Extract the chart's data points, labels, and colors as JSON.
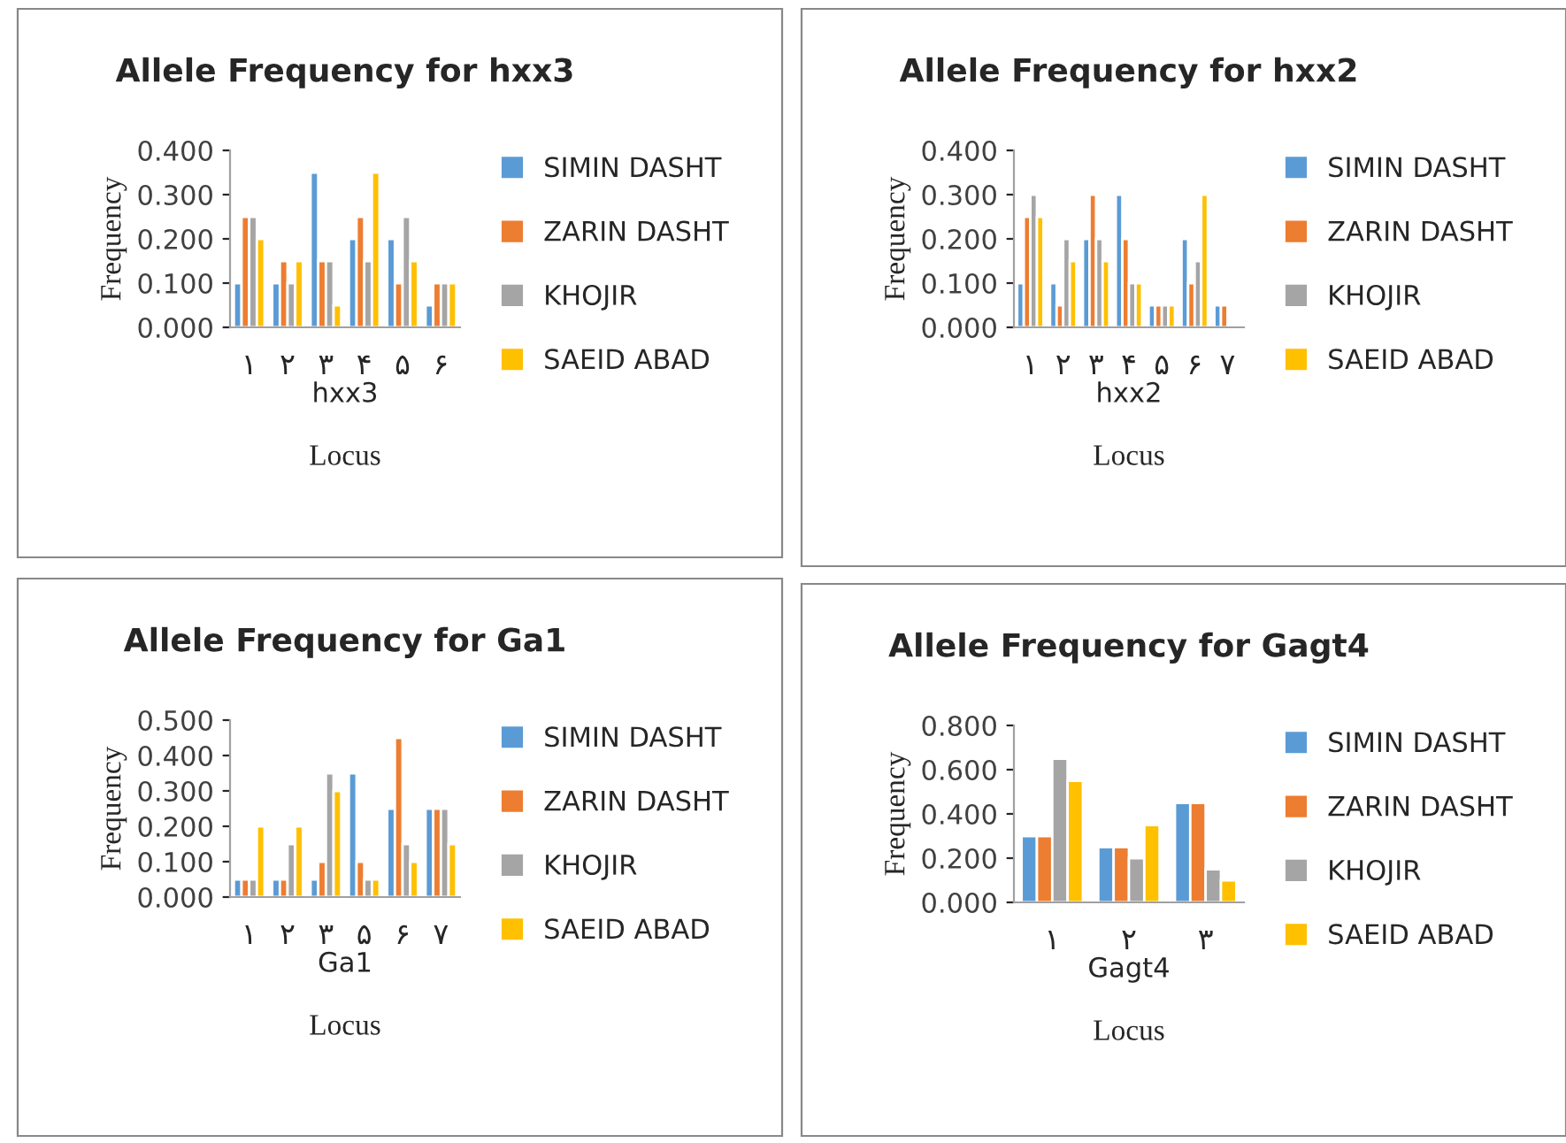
{
  "chart_data": [
    {
      "type": "bar",
      "title": "Allele Frequency for hxx3",
      "xlabel": "Locus",
      "ylabel": "Frequency",
      "annotations": [
        "hxx3"
      ],
      "categories": [
        "۱",
        "۲",
        "۳",
        "۴",
        "۵",
        "۶"
      ],
      "ylim": [
        0,
        0.4
      ],
      "yticks": [
        {
          "value": 0,
          "label": "0.000"
        },
        {
          "value": 0.1,
          "label": "0.100"
        },
        {
          "value": 0.2,
          "label": "0.200"
        },
        {
          "value": 0.3,
          "label": "0.300"
        },
        {
          "value": 0.4,
          "label": "0.400"
        }
      ],
      "grid": false,
      "legend": "right",
      "series": [
        {
          "name": "SIMIN DASHT",
          "color": "#5b9bd5",
          "values": [
            0.1,
            0.1,
            0.35,
            0.2,
            0.2,
            0.05
          ]
        },
        {
          "name": "ZARIN DASHT",
          "color": "#ed7d31",
          "values": [
            0.25,
            0.15,
            0.15,
            0.25,
            0.1,
            0.1
          ]
        },
        {
          "name": "KHOJIR",
          "color": "#a5a5a5",
          "values": [
            0.25,
            0.1,
            0.15,
            0.15,
            0.25,
            0.1
          ]
        },
        {
          "name": "SAEID ABAD",
          "color": "#ffc000",
          "values": [
            0.2,
            0.15,
            0.05,
            0.35,
            0.15,
            0.1
          ]
        }
      ]
    },
    {
      "type": "bar",
      "title": "Allele Frequency for hxx2",
      "xlabel": "Locus",
      "ylabel": "Frequency",
      "annotations": [
        "hxx2"
      ],
      "categories": [
        "۱",
        "۲",
        "۳",
        "۴",
        "۵",
        "۶",
        "۷"
      ],
      "ylim": [
        0,
        0.4
      ],
      "yticks": [
        {
          "value": 0,
          "label": "0.000"
        },
        {
          "value": 0.1,
          "label": "0.100"
        },
        {
          "value": 0.2,
          "label": "0.200"
        },
        {
          "value": 0.3,
          "label": "0.300"
        },
        {
          "value": 0.4,
          "label": "0.400"
        }
      ],
      "grid": false,
      "legend": "right",
      "series": [
        {
          "name": "SIMIN DASHT",
          "color": "#5b9bd5",
          "values": [
            0.1,
            0.1,
            0.2,
            0.3,
            0.05,
            0.2,
            0.05
          ]
        },
        {
          "name": "ZARIN DASHT",
          "color": "#ed7d31",
          "values": [
            0.25,
            0.05,
            0.3,
            0.2,
            0.05,
            0.1,
            0.05
          ]
        },
        {
          "name": "KHOJIR",
          "color": "#a5a5a5",
          "values": [
            0.3,
            0.2,
            0.2,
            0.1,
            0.05,
            0.15,
            null
          ]
        },
        {
          "name": "SAEID ABAD",
          "color": "#ffc000",
          "values": [
            0.25,
            0.15,
            0.15,
            0.1,
            0.05,
            0.3,
            null
          ]
        }
      ]
    },
    {
      "type": "bar",
      "title": "Allele Frequency for Ga1",
      "xlabel": "Locus",
      "ylabel": "Frequency",
      "annotations": [
        "Ga1"
      ],
      "categories": [
        "۱",
        "۲",
        "۳",
        "۵",
        "۶",
        "۷"
      ],
      "ylim": [
        0,
        0.5
      ],
      "yticks": [
        {
          "value": 0,
          "label": "0.000"
        },
        {
          "value": 0.1,
          "label": "0.100"
        },
        {
          "value": 0.2,
          "label": "0.200"
        },
        {
          "value": 0.3,
          "label": "0.300"
        },
        {
          "value": 0.4,
          "label": "0.400"
        },
        {
          "value": 0.5,
          "label": "0.500"
        }
      ],
      "grid": false,
      "legend": "right",
      "series": [
        {
          "name": "SIMIN DASHT",
          "color": "#5b9bd5",
          "values": [
            0.05,
            0.05,
            0.05,
            0.35,
            0.25,
            0.25
          ]
        },
        {
          "name": "ZARIN DASHT",
          "color": "#ed7d31",
          "values": [
            0.05,
            0.05,
            0.1,
            0.1,
            0.45,
            0.25
          ]
        },
        {
          "name": "KHOJIR",
          "color": "#a5a5a5",
          "values": [
            0.05,
            0.15,
            0.35,
            0.05,
            0.15,
            0.25
          ]
        },
        {
          "name": "SAEID ABAD",
          "color": "#ffc000",
          "values": [
            0.2,
            0.2,
            0.3,
            0.05,
            0.1,
            0.15
          ]
        }
      ]
    },
    {
      "type": "bar",
      "title": "Allele Frequency for Gagt4",
      "xlabel": "Locus",
      "ylabel": "Frequency",
      "annotations": [
        "Gagt4"
      ],
      "categories": [
        "۱",
        "۲",
        "۳"
      ],
      "ylim": [
        0,
        0.8
      ],
      "yticks": [
        {
          "value": 0,
          "label": "0.000"
        },
        {
          "value": 0.2,
          "label": "0.200"
        },
        {
          "value": 0.4,
          "label": "0.400"
        },
        {
          "value": 0.6,
          "label": "0.600"
        },
        {
          "value": 0.8,
          "label": "0.800"
        }
      ],
      "grid": false,
      "legend": "right",
      "series": [
        {
          "name": "SIMIN DASHT",
          "color": "#5b9bd5",
          "values": [
            0.3,
            0.25,
            0.45
          ]
        },
        {
          "name": "ZARIN DASHT",
          "color": "#ed7d31",
          "values": [
            0.3,
            0.25,
            0.45
          ]
        },
        {
          "name": "KHOJIR",
          "color": "#a5a5a5",
          "values": [
            0.65,
            0.2,
            0.15
          ]
        },
        {
          "name": "SAEID ABAD",
          "color": "#ffc000",
          "values": [
            0.55,
            0.35,
            0.1
          ]
        }
      ]
    }
  ]
}
